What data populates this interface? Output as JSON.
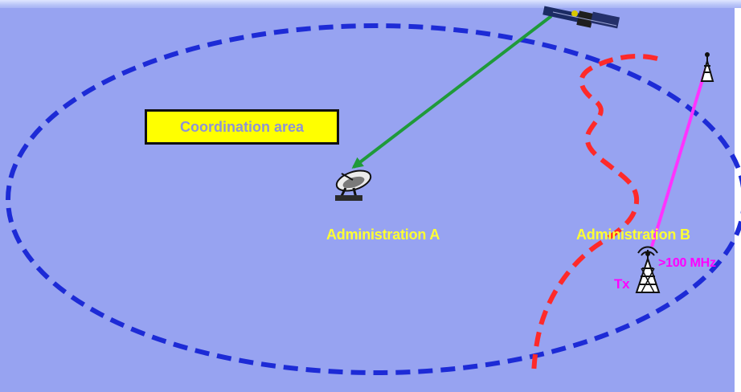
{
  "diagram": {
    "coordination_area_label": "Coordination area",
    "administration_a_label": "Administration A",
    "administration_b_label": "Administration B",
    "tx_label": "Tx",
    "frequency_label": ">100 MHz"
  },
  "icons": {
    "satellite": "satellite-icon",
    "dish": "satellite-dish-icon",
    "small_tower": "radio-tower-icon",
    "tx_tower": "radio-tower-icon"
  },
  "colors": {
    "background": "#97a3f1",
    "boundary_ellipse": "#1d2bd6",
    "border_line": "#ff2a2a",
    "satellite_link": "#1f9a3a",
    "terrestrial_link": "#ff33ff",
    "label_box": "#ffff00",
    "label_text": "#ffff33",
    "tx_text": "#ff00ff"
  }
}
